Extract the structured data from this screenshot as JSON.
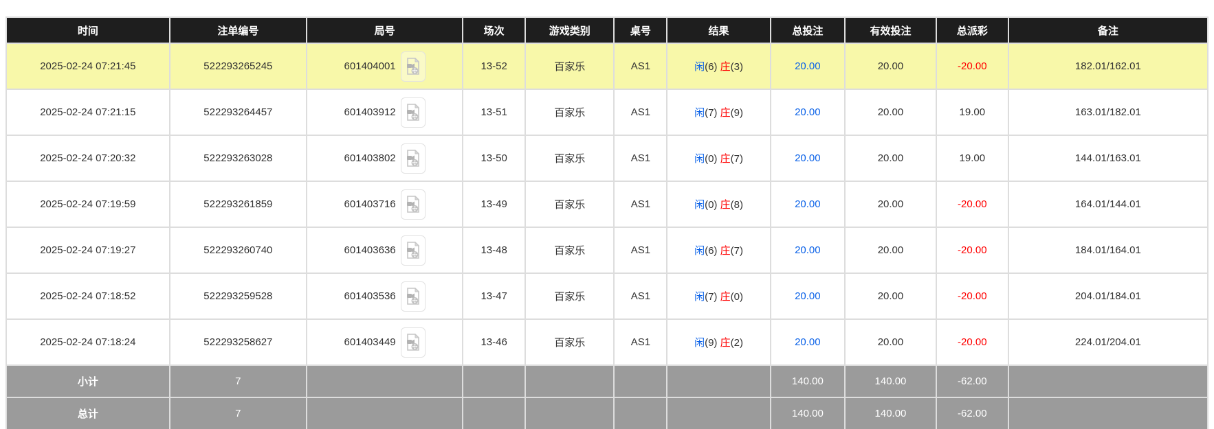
{
  "colors": {
    "accent_blue": "#0b62e8",
    "accent_red": "#ff0000",
    "highlight_row": "#f8f8a9",
    "header_bg": "#1e1e1e",
    "summary_bg": "#9b9b9b"
  },
  "table": {
    "columns": [
      {
        "key": "time",
        "label": "时间"
      },
      {
        "key": "bet-id",
        "label": "注单编号"
      },
      {
        "key": "round",
        "label": "局号"
      },
      {
        "key": "session",
        "label": "场次"
      },
      {
        "key": "game-type",
        "label": "游戏类别"
      },
      {
        "key": "table-no",
        "label": "桌号"
      },
      {
        "key": "result",
        "label": "结果"
      },
      {
        "key": "total-bet",
        "label": "总投注"
      },
      {
        "key": "valid-bet",
        "label": "有效投注"
      },
      {
        "key": "total-payout",
        "label": "总派彩"
      },
      {
        "key": "remark",
        "label": "备注"
      }
    ],
    "video_icon_name": "video-replay-icon",
    "rows": [
      {
        "highlighted": true,
        "time": "2025-02-24 07:21:45",
        "bet_id": "522293265245",
        "round_id": "601404001",
        "session": "13-52",
        "game_type": "百家乐",
        "table_no": "AS1",
        "result": {
          "player_label": "闲",
          "player_score": "(6)",
          "banker_label": "庄",
          "banker_score": "(3)"
        },
        "total_bet": "20.00",
        "valid_bet": "20.00",
        "payout": "-20.00",
        "remark": "182.01/162.01"
      },
      {
        "highlighted": false,
        "time": "2025-02-24 07:21:15",
        "bet_id": "522293264457",
        "round_id": "601403912",
        "session": "13-51",
        "game_type": "百家乐",
        "table_no": "AS1",
        "result": {
          "player_label": "闲",
          "player_score": "(7)",
          "banker_label": "庄",
          "banker_score": "(9)"
        },
        "total_bet": "20.00",
        "valid_bet": "20.00",
        "payout": "19.00",
        "remark": "163.01/182.01"
      },
      {
        "highlighted": false,
        "time": "2025-02-24 07:20:32",
        "bet_id": "522293263028",
        "round_id": "601403802",
        "session": "13-50",
        "game_type": "百家乐",
        "table_no": "AS1",
        "result": {
          "player_label": "闲",
          "player_score": "(0)",
          "banker_label": "庄",
          "banker_score": "(7)"
        },
        "total_bet": "20.00",
        "valid_bet": "20.00",
        "payout": "19.00",
        "remark": "144.01/163.01"
      },
      {
        "highlighted": false,
        "time": "2025-02-24 07:19:59",
        "bet_id": "522293261859",
        "round_id": "601403716",
        "session": "13-49",
        "game_type": "百家乐",
        "table_no": "AS1",
        "result": {
          "player_label": "闲",
          "player_score": "(0)",
          "banker_label": "庄",
          "banker_score": "(8)"
        },
        "total_bet": "20.00",
        "valid_bet": "20.00",
        "payout": "-20.00",
        "remark": "164.01/144.01"
      },
      {
        "highlighted": false,
        "time": "2025-02-24 07:19:27",
        "bet_id": "522293260740",
        "round_id": "601403636",
        "session": "13-48",
        "game_type": "百家乐",
        "table_no": "AS1",
        "result": {
          "player_label": "闲",
          "player_score": "(6)",
          "banker_label": "庄",
          "banker_score": "(7)"
        },
        "total_bet": "20.00",
        "valid_bet": "20.00",
        "payout": "-20.00",
        "remark": "184.01/164.01"
      },
      {
        "highlighted": false,
        "time": "2025-02-24 07:18:52",
        "bet_id": "522293259528",
        "round_id": "601403536",
        "session": "13-47",
        "game_type": "百家乐",
        "table_no": "AS1",
        "result": {
          "player_label": "闲",
          "player_score": "(7)",
          "banker_label": "庄",
          "banker_score": "(0)"
        },
        "total_bet": "20.00",
        "valid_bet": "20.00",
        "payout": "-20.00",
        "remark": "204.01/184.01"
      },
      {
        "highlighted": false,
        "time": "2025-02-24 07:18:24",
        "bet_id": "522293258627",
        "round_id": "601403449",
        "session": "13-46",
        "game_type": "百家乐",
        "table_no": "AS1",
        "result": {
          "player_label": "闲",
          "player_score": "(9)",
          "banker_label": "庄",
          "banker_score": "(2)"
        },
        "total_bet": "20.00",
        "valid_bet": "20.00",
        "payout": "-20.00",
        "remark": "224.01/204.01"
      }
    ],
    "summary": [
      {
        "key": "subtotal",
        "label": "小计",
        "count": "7",
        "total_bet": "140.00",
        "valid_bet": "140.00",
        "payout": "-62.00"
      },
      {
        "key": "total",
        "label": "总计",
        "count": "7",
        "total_bet": "140.00",
        "valid_bet": "140.00",
        "payout": "-62.00"
      }
    ]
  }
}
